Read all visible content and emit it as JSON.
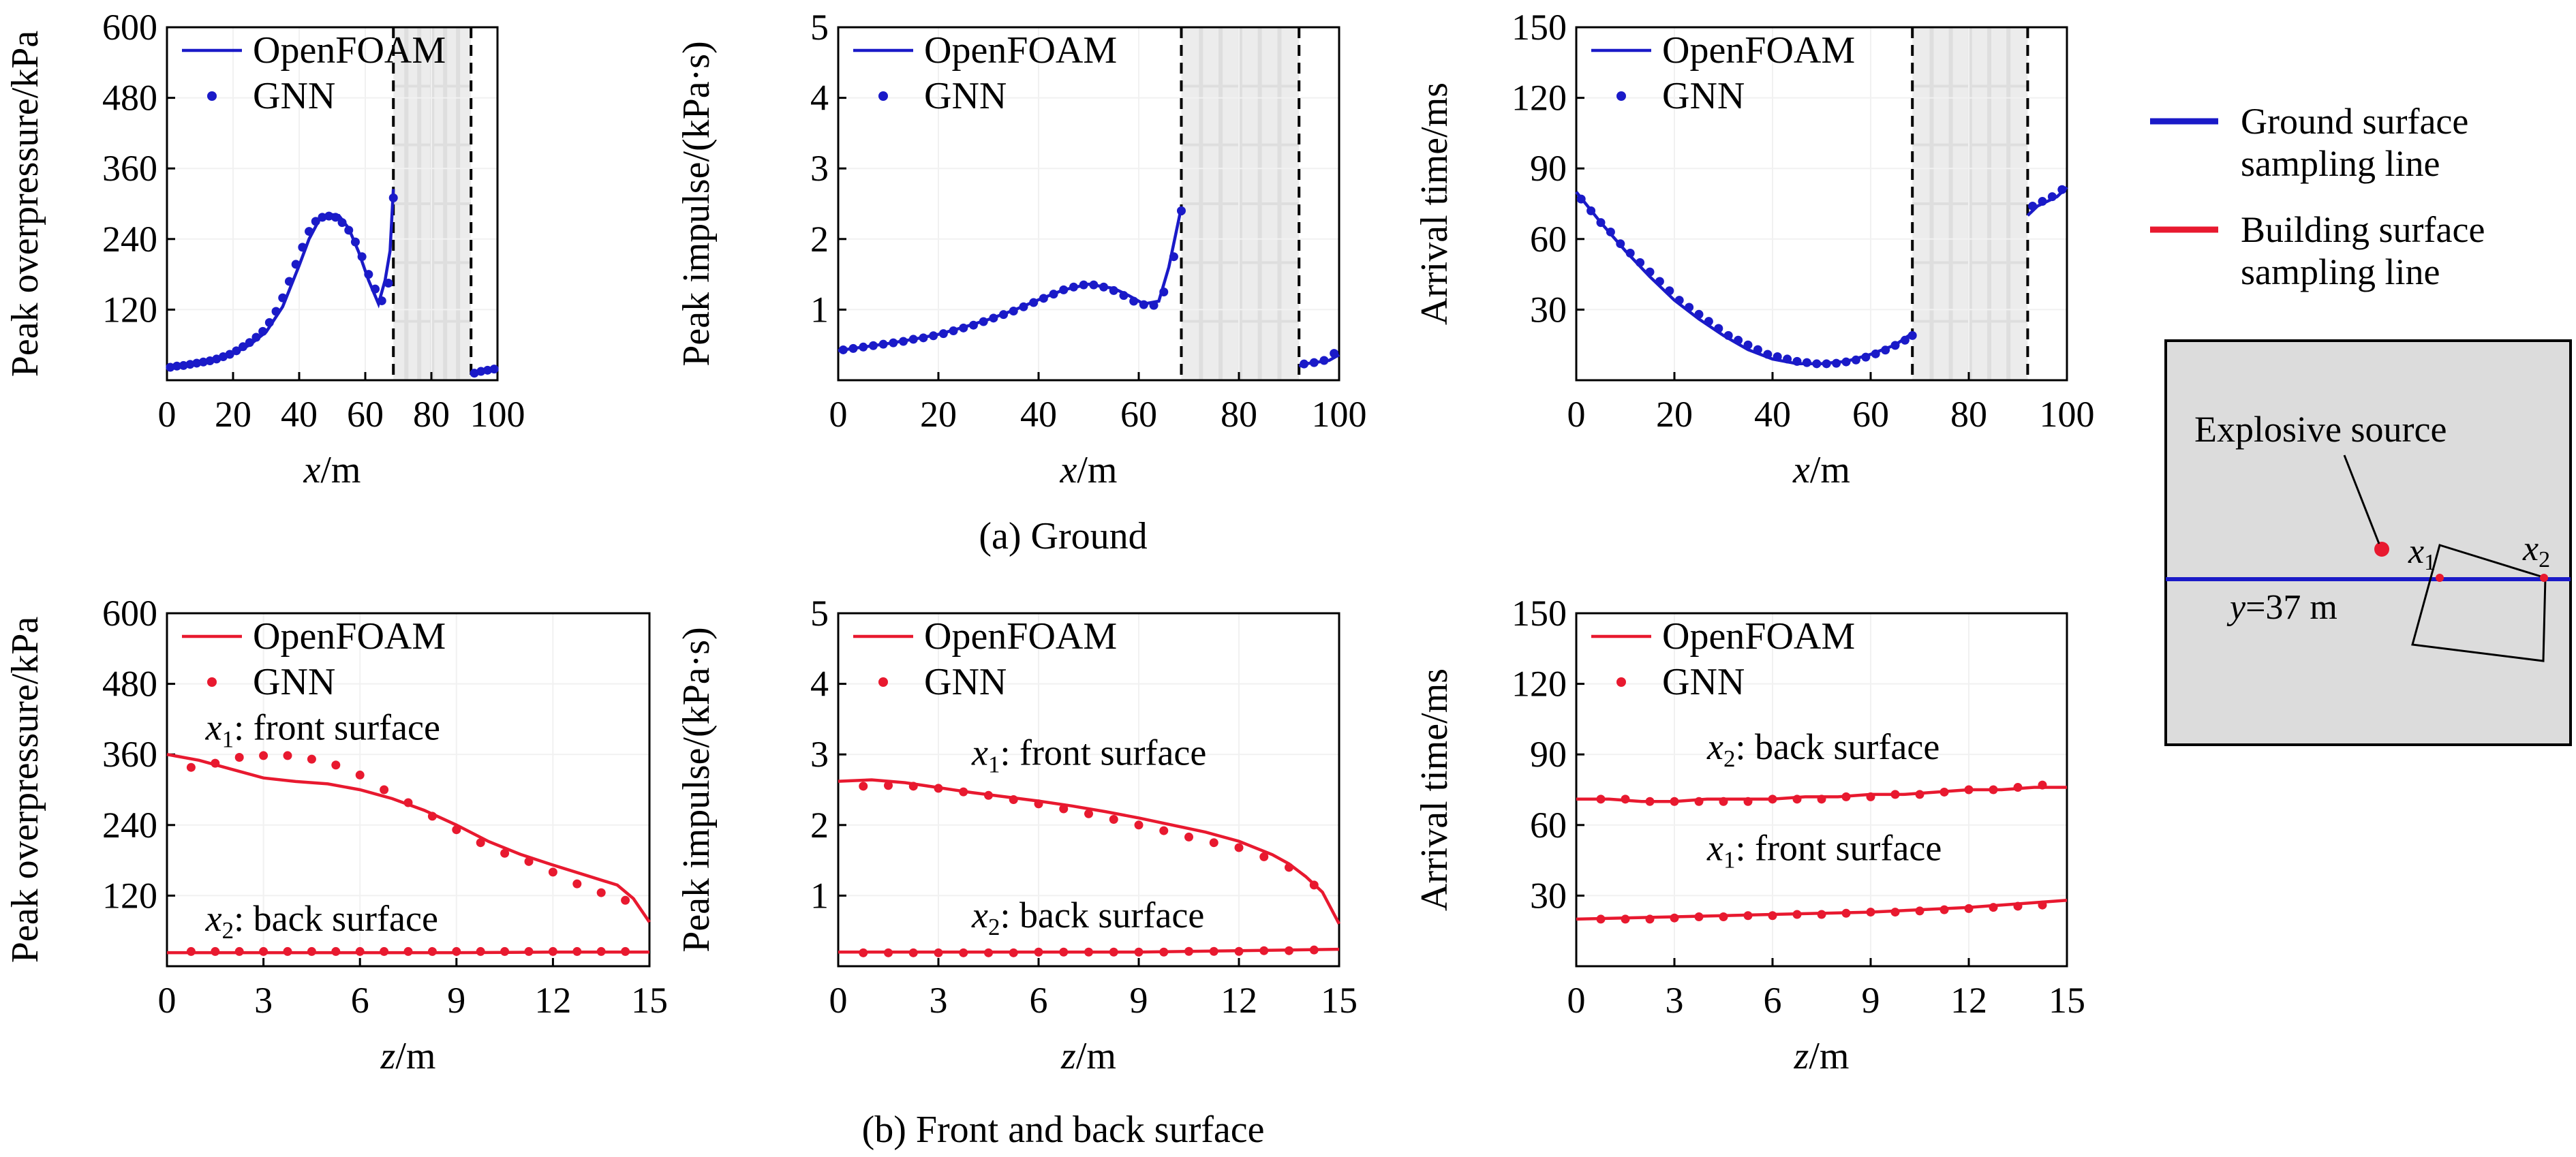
{
  "colors": {
    "ground": "#1a1ac8",
    "building": "#e8192f",
    "marker_red": "#e8192f",
    "panel_bg": "#dcdcdc",
    "shade": "#e2e2e2"
  },
  "captions": {
    "a": "(a) Ground",
    "b": "(b) Front and back surface"
  },
  "chart_data": [
    {
      "type": "line",
      "panel": "a1",
      "xlabel": "x/m",
      "ylabel": "Peak overpressure/kPa",
      "xlim": [
        0,
        100
      ],
      "ylim": [
        0,
        600
      ],
      "xticks": [
        0,
        20,
        40,
        60,
        80,
        100
      ],
      "yticks": [
        120,
        240,
        360,
        480,
        600
      ],
      "legend": [
        "OpenFOAM",
        "GNN"
      ],
      "vlines": [
        68.5,
        92
      ],
      "shade": [
        68.5,
        92
      ],
      "line_segments": [
        {
          "x": [
            0,
            5,
            10,
            15,
            20,
            25,
            30,
            35,
            40,
            43,
            46,
            49,
            52,
            55,
            58,
            61,
            64,
            66,
            67.5,
            68.5
          ],
          "y": [
            22,
            26,
            30,
            36,
            45,
            60,
            82,
            125,
            195,
            240,
            272,
            282,
            280,
            258,
            218,
            170,
            130,
            170,
            220,
            325
          ]
        },
        {
          "x": [
            92,
            94,
            96,
            98,
            100
          ],
          "y": [
            10,
            14,
            16,
            17,
            18
          ]
        }
      ],
      "points": {
        "x": [
          1,
          3,
          5,
          7,
          9,
          11,
          13,
          15,
          17,
          19,
          21,
          23,
          25,
          27,
          29,
          31,
          33,
          35,
          37,
          39,
          41,
          43,
          45,
          47,
          49,
          51,
          53,
          55,
          57,
          59,
          61,
          63,
          65,
          67,
          68.5,
          93,
          95,
          97,
          99
        ],
        "y": [
          22,
          24,
          25,
          27,
          29,
          31,
          33,
          36,
          40,
          44,
          50,
          57,
          64,
          73,
          83,
          98,
          117,
          140,
          168,
          197,
          226,
          253,
          270,
          277,
          279,
          277,
          268,
          255,
          235,
          210,
          180,
          155,
          135,
          165,
          310,
          12,
          15,
          17,
          19
        ]
      }
    },
    {
      "type": "line",
      "panel": "a2",
      "xlabel": "x/m",
      "ylabel": "Peak impulse/(kPa·s)",
      "xlim": [
        0,
        100
      ],
      "ylim": [
        0,
        5
      ],
      "xticks": [
        0,
        20,
        40,
        60,
        80,
        100
      ],
      "yticks": [
        1,
        2,
        3,
        4,
        5
      ],
      "legend": [
        "OpenFOAM",
        "GNN"
      ],
      "vlines": [
        68.5,
        92
      ],
      "shade": [
        68.5,
        92
      ],
      "line_segments": [
        {
          "x": [
            0,
            5,
            10,
            15,
            20,
            25,
            30,
            35,
            40,
            45,
            50,
            55,
            58,
            61,
            64,
            66,
            68.5
          ],
          "y": [
            0.42,
            0.47,
            0.52,
            0.58,
            0.65,
            0.75,
            0.86,
            0.99,
            1.14,
            1.28,
            1.36,
            1.3,
            1.2,
            1.08,
            1.12,
            1.6,
            2.45
          ]
        },
        {
          "x": [
            92,
            94,
            96,
            98,
            100
          ],
          "y": [
            0.2,
            0.24,
            0.26,
            0.28,
            0.36
          ]
        }
      ],
      "points": {
        "x": [
          1,
          3,
          5,
          7,
          9,
          11,
          13,
          15,
          17,
          19,
          21,
          23,
          25,
          27,
          29,
          31,
          33,
          35,
          37,
          39,
          41,
          43,
          45,
          47,
          49,
          51,
          53,
          55,
          57,
          59,
          61,
          63,
          65,
          67,
          68.5,
          93,
          95,
          97,
          99
        ],
        "y": [
          0.43,
          0.45,
          0.47,
          0.49,
          0.51,
          0.53,
          0.55,
          0.58,
          0.6,
          0.63,
          0.66,
          0.7,
          0.74,
          0.78,
          0.83,
          0.88,
          0.93,
          0.98,
          1.04,
          1.1,
          1.16,
          1.22,
          1.28,
          1.32,
          1.35,
          1.35,
          1.32,
          1.27,
          1.2,
          1.12,
          1.07,
          1.06,
          1.25,
          1.75,
          2.4,
          0.23,
          0.25,
          0.28,
          0.38
        ]
      }
    },
    {
      "type": "line",
      "panel": "a3",
      "xlabel": "x/m",
      "ylabel": "Arrival time/ms",
      "xlim": [
        0,
        100
      ],
      "ylim": [
        0,
        150
      ],
      "xticks": [
        0,
        20,
        40,
        60,
        80,
        100
      ],
      "yticks": [
        30,
        60,
        90,
        120,
        150
      ],
      "legend": [
        "OpenFOAM",
        "GNN"
      ],
      "vlines": [
        68.5,
        92
      ],
      "shade": [
        68.5,
        92
      ],
      "line_segments": [
        {
          "x": [
            0,
            5,
            10,
            15,
            20,
            25,
            30,
            35,
            40,
            45,
            50,
            55,
            60,
            65,
            68.5
          ],
          "y": [
            80,
            67,
            55,
            44,
            34,
            26,
            19,
            13,
            9,
            7,
            7,
            8,
            11,
            15,
            20
          ]
        },
        {
          "x": [
            92,
            94,
            96,
            98,
            100
          ],
          "y": [
            70,
            74,
            76,
            78,
            82
          ]
        }
      ],
      "points": {
        "x": [
          1,
          3,
          5,
          7,
          9,
          11,
          13,
          15,
          17,
          19,
          21,
          23,
          25,
          27,
          29,
          31,
          33,
          35,
          37,
          39,
          41,
          43,
          45,
          47,
          49,
          51,
          53,
          55,
          57,
          59,
          61,
          63,
          65,
          67,
          68.5,
          93,
          95,
          97,
          99
        ],
        "y": [
          77,
          72,
          67,
          63,
          58,
          54,
          50,
          46,
          42,
          38,
          34,
          31,
          28,
          25,
          22,
          19,
          17,
          15,
          13,
          11,
          10,
          9,
          8,
          7.5,
          7,
          7,
          7.2,
          7.8,
          8.6,
          9.8,
          11.2,
          12.8,
          14.8,
          17,
          19,
          74,
          76,
          78,
          81
        ]
      }
    },
    {
      "type": "line",
      "panel": "b1",
      "xlabel": "z/m",
      "ylabel": "Peak overpressure/kPa",
      "xlim": [
        0,
        15
      ],
      "ylim": [
        0,
        600
      ],
      "xticks": [
        0,
        3,
        6,
        9,
        12,
        15
      ],
      "yticks": [
        120,
        240,
        360,
        480,
        600
      ],
      "legend": [
        "OpenFOAM",
        "GNN"
      ],
      "series": [
        {
          "name": "x1: front surface",
          "line": {
            "x": [
              0,
              1,
              2,
              3,
              4,
              5,
              6,
              7,
              8,
              9,
              10,
              11,
              12,
              13,
              14,
              14.5,
              15
            ],
            "y": [
              360,
              350,
              335,
              320,
              314,
              310,
              300,
              285,
              265,
              240,
              212,
              190,
              172,
              155,
              138,
              115,
              75
            ]
          },
          "points": {
            "x": [
              0.75,
              1.5,
              2.25,
              3,
              3.75,
              4.5,
              5.25,
              6,
              6.75,
              7.5,
              8.25,
              9,
              9.75,
              10.5,
              11.25,
              12,
              12.75,
              13.5,
              14.25
            ],
            "y": [
              338,
              345,
              355,
              358,
              358,
              352,
              342,
              325,
              300,
              278,
              255,
              232,
              210,
              192,
              178,
              160,
              140,
              125,
              112
            ]
          }
        },
        {
          "name": "x2: back surface",
          "line": {
            "x": [
              0,
              3,
              6,
              9,
              12,
              15
            ],
            "y": [
              23,
              23,
              23,
              23,
              24,
              24
            ]
          },
          "points": {
            "x": [
              0.75,
              1.5,
              2.25,
              3,
              3.75,
              4.5,
              5.25,
              6,
              6.75,
              7.5,
              8.25,
              9,
              9.75,
              10.5,
              11.25,
              12,
              12.75,
              13.5,
              14.25
            ],
            "y": [
              25,
              25,
              25,
              25,
              25,
              25,
              25,
              25,
              25,
              25,
              25,
              25,
              25,
              25,
              25,
              25,
              25,
              25,
              25
            ]
          }
        }
      ],
      "annotations": [
        {
          "text": "x1: front surface",
          "at": [
            1.2,
            385
          ]
        },
        {
          "text": "x2: back surface",
          "at": [
            1.2,
            60
          ]
        }
      ]
    },
    {
      "type": "line",
      "panel": "b2",
      "xlabel": "z/m",
      "ylabel": "Peak impulse/(kPa·s)",
      "xlim": [
        0,
        15
      ],
      "ylim": [
        0,
        5
      ],
      "xticks": [
        0,
        3,
        6,
        9,
        12,
        15
      ],
      "yticks": [
        1,
        2,
        3,
        4,
        5
      ],
      "legend": [
        "OpenFOAM",
        "GNN"
      ],
      "series": [
        {
          "name": "x1: front surface",
          "line": {
            "x": [
              0,
              1,
              2,
              3,
              4,
              5,
              6,
              7,
              8,
              9,
              10,
              11,
              12,
              13,
              13.5,
              14,
              14.5,
              15
            ],
            "y": [
              2.62,
              2.64,
              2.6,
              2.53,
              2.46,
              2.4,
              2.34,
              2.27,
              2.19,
              2.1,
              2.0,
              1.9,
              1.77,
              1.58,
              1.45,
              1.27,
              1.05,
              0.6
            ]
          },
          "points": {
            "x": [
              0.75,
              1.5,
              2.25,
              3,
              3.75,
              4.5,
              5.25,
              6,
              6.75,
              7.5,
              8.25,
              9,
              9.75,
              10.5,
              11.25,
              12,
              12.75,
              13.5,
              14.25
            ],
            "y": [
              2.55,
              2.56,
              2.55,
              2.52,
              2.47,
              2.42,
              2.36,
              2.3,
              2.23,
              2.16,
              2.08,
              2.0,
              1.92,
              1.83,
              1.75,
              1.68,
              1.55,
              1.4,
              1.15
            ]
          }
        },
        {
          "name": "x2: back surface",
          "line": {
            "x": [
              0,
              3,
              6,
              9,
              12,
              15
            ],
            "y": [
              0.2,
              0.2,
              0.2,
              0.2,
              0.22,
              0.24
            ]
          },
          "points": {
            "x": [
              0.75,
              1.5,
              2.25,
              3,
              3.75,
              4.5,
              5.25,
              6,
              6.75,
              7.5,
              8.25,
              9,
              9.75,
              10.5,
              11.25,
              12,
              12.75,
              13.5,
              14.25
            ],
            "y": [
              0.19,
              0.19,
              0.19,
              0.19,
              0.19,
              0.19,
              0.19,
              0.2,
              0.2,
              0.2,
              0.2,
              0.2,
              0.2,
              0.21,
              0.21,
              0.21,
              0.22,
              0.22,
              0.23
            ]
          }
        }
      ],
      "annotations": [
        {
          "text": "x1: front surface",
          "at": [
            4,
            2.85
          ]
        },
        {
          "text": "x2: back surface",
          "at": [
            4,
            0.55
          ]
        }
      ]
    },
    {
      "type": "line",
      "panel": "b3",
      "xlabel": "z/m",
      "ylabel": "Arrival time/ms",
      "xlim": [
        0,
        15
      ],
      "ylim": [
        0,
        150
      ],
      "xticks": [
        0,
        3,
        6,
        9,
        12,
        15
      ],
      "yticks": [
        30,
        60,
        90,
        120,
        150
      ],
      "legend": [
        "OpenFOAM",
        "GNN"
      ],
      "series": [
        {
          "name": "x2: back surface",
          "line": {
            "x": [
              0,
              1,
              2,
              3,
              4,
              5,
              6,
              7,
              8,
              9,
              10,
              11,
              12,
              13,
              14,
              15
            ],
            "y": [
              71,
              71,
              70,
              70,
              71,
              71,
              71,
              72,
              72,
              73,
              73,
              74,
              75,
              75,
              76,
              76
            ]
          },
          "points": {
            "x": [
              0.75,
              1.5,
              2.25,
              3,
              3.75,
              4.5,
              5.25,
              6,
              6.75,
              7.5,
              8.25,
              9,
              9.75,
              10.5,
              11.25,
              12,
              12.75,
              13.5,
              14.25
            ],
            "y": [
              71,
              71,
              70,
              70,
              70,
              70,
              70,
              71,
              71,
              71,
              72,
              72,
              73,
              73,
              74,
              75,
              75,
              76,
              77
            ]
          }
        },
        {
          "name": "x1: front surface",
          "line": {
            "x": [
              0,
              3,
              6,
              9,
              12,
              13,
              14,
              15
            ],
            "y": [
              20,
              21,
              22,
              23,
              25,
              26,
              27,
              28
            ]
          },
          "points": {
            "x": [
              0.75,
              1.5,
              2.25,
              3,
              3.75,
              4.5,
              5.25,
              6,
              6.75,
              7.5,
              8.25,
              9,
              9.75,
              10.5,
              11.25,
              12,
              12.75,
              13.5,
              14.25
            ],
            "y": [
              20,
              20,
              20,
              20.5,
              21,
              21,
              21.5,
              21.5,
              22,
              22,
              22.5,
              23,
              23,
              23.5,
              24,
              24.5,
              25,
              25.5,
              26
            ]
          }
        }
      ],
      "annotations": [
        {
          "text": "x2: back surface",
          "at": [
            4,
            88
          ]
        },
        {
          "text": "x1: front surface",
          "at": [
            4,
            45
          ]
        }
      ]
    }
  ],
  "schematic": {
    "legend": [
      {
        "line1": "Ground surface",
        "line2": "sampling line"
      },
      {
        "line1": "Building surface",
        "line2": "sampling line"
      }
    ],
    "source_label": "Explosive source",
    "x1_label": "x",
    "x1_sub": "1",
    "x2_label": "x",
    "x2_sub": "2",
    "y_label": "y",
    "y_value": "=37 m"
  }
}
